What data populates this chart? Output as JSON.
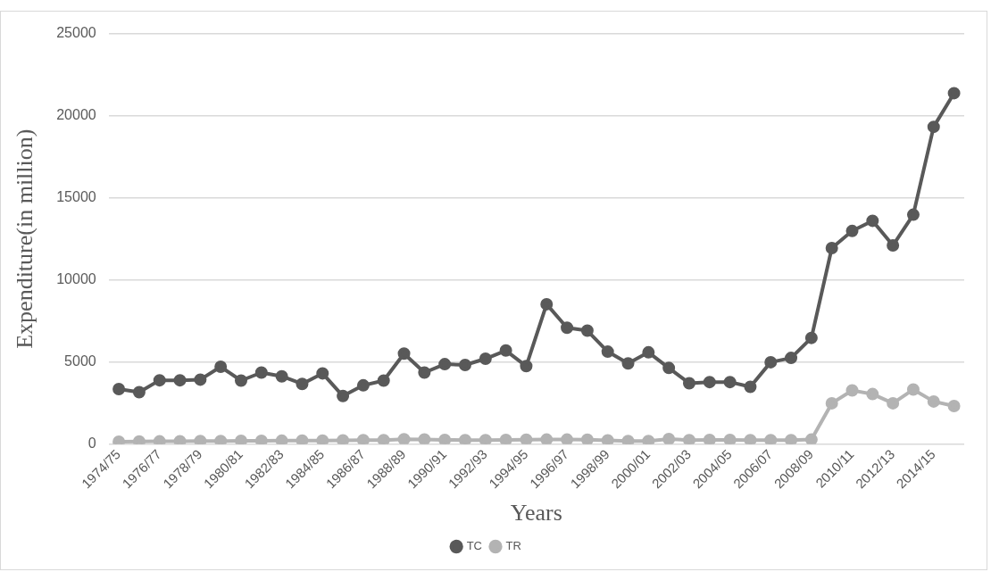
{
  "chart_data": {
    "type": "line",
    "xlabel": "Years",
    "ylabel": "Expenditure(in million)",
    "categories": [
      "1974/75",
      null,
      "1976/77",
      null,
      "1978/79",
      null,
      "1980/81",
      null,
      "1982/83",
      null,
      "1984/85",
      null,
      "1986/87",
      null,
      "1988/89",
      null,
      "1990/91",
      null,
      "1992/93",
      null,
      "1994/95",
      null,
      "1996/97",
      null,
      "1998/99",
      null,
      "2000/01",
      null,
      "2002/03",
      null,
      "2004/05",
      null,
      "2006/07",
      null,
      "2008/09",
      null,
      "2010/11",
      null,
      "2012/13",
      null,
      "2014/15",
      null
    ],
    "series": [
      {
        "name": "TC",
        "color": "#595959",
        "values": [
          3350,
          3160,
          3890,
          3890,
          3930,
          4710,
          3870,
          4360,
          4130,
          3670,
          4310,
          2930,
          3580,
          3870,
          5510,
          4360,
          4870,
          4820,
          5200,
          5700,
          4750,
          8520,
          7090,
          6910,
          5630,
          4920,
          5590,
          4640,
          3710,
          3780,
          3780,
          3490,
          4990,
          5250,
          6470,
          11940,
          12980,
          13600,
          12100,
          13970,
          19320,
          21370
        ]
      },
      {
        "name": "TR",
        "color": "#b3b3b3",
        "values": [
          150,
          160,
          170,
          180,
          190,
          190,
          200,
          200,
          210,
          220,
          220,
          230,
          240,
          250,
          300,
          290,
          260,
          250,
          250,
          260,
          270,
          280,
          280,
          270,
          230,
          190,
          190,
          310,
          250,
          260,
          260,
          250,
          240,
          250,
          280,
          2490,
          3270,
          3050,
          2490,
          3330,
          2600,
          2320
        ]
      }
    ],
    "ylim": [
      0,
      25000
    ],
    "yticks": [
      0,
      5000,
      10000,
      15000,
      20000,
      25000
    ],
    "grid": "y",
    "legend": "bottom",
    "marker": "circle",
    "line_style": "solid"
  }
}
